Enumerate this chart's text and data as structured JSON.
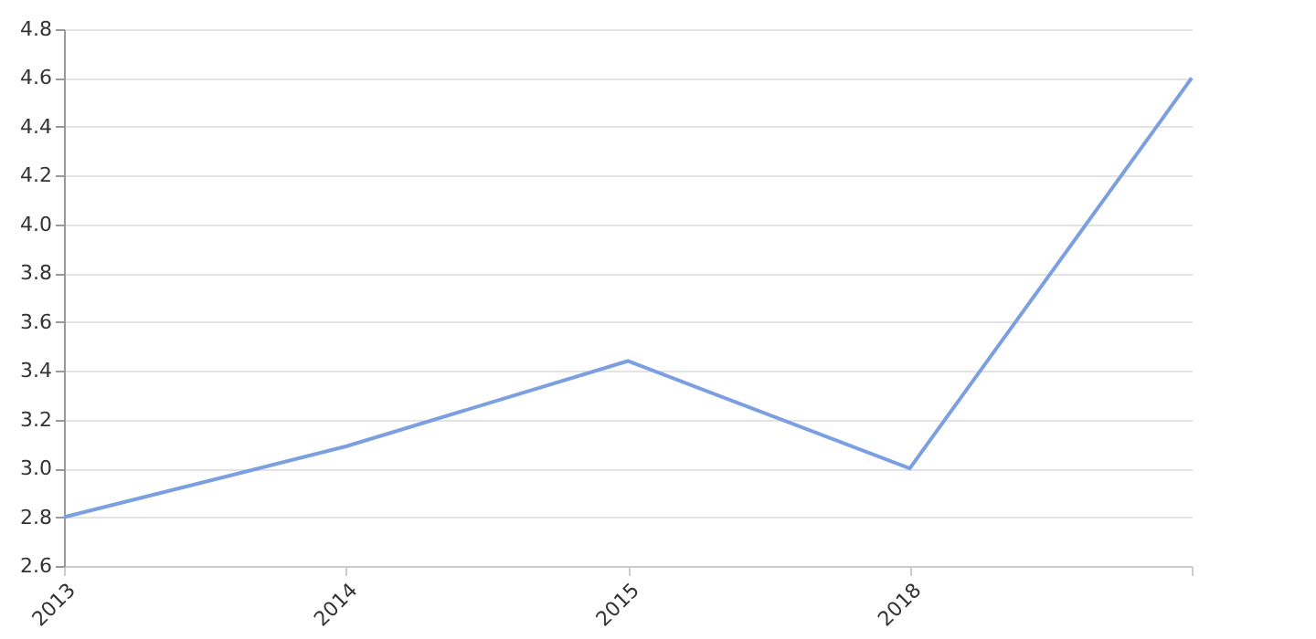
{
  "chart_data": {
    "type": "line",
    "categories": [
      "2013",
      "2014",
      "2015",
      "2018",
      null
    ],
    "series": [
      {
        "color": "#7b9fe0",
        "values": [
          2.8,
          3.09,
          3.44,
          3.0,
          4.6
        ]
      }
    ],
    "ylim": [
      2.6,
      4.8
    ],
    "yticks": [
      2.6,
      2.8,
      {
        "value": 3,
        "label": "3.0"
      },
      3.2,
      3.4,
      3.6,
      3.8,
      {
        "value": 4,
        "label": "4.0"
      },
      4.2,
      4.4,
      4.6,
      4.8
    ],
    "grid": "y",
    "marker": "none",
    "line_style": "solid"
  }
}
